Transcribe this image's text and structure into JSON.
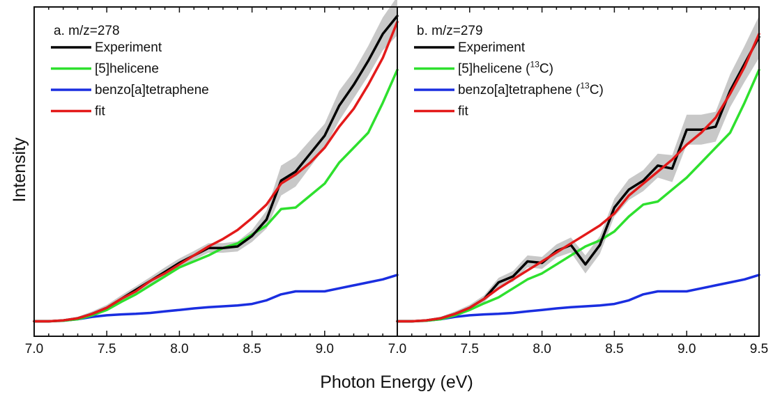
{
  "chart_data": [
    {
      "panel": "a",
      "type": "line",
      "title": "a. m/z=278",
      "xlabel": "Photon Energy (eV)",
      "ylabel": "Intensity",
      "xlim": [
        7.0,
        9.5
      ],
      "ylim": [
        -0.05,
        1.05
      ],
      "x_tick_labels": [
        "7.0",
        "7.5",
        "8.0",
        "8.5",
        "9.0"
      ],
      "grid": false,
      "legend_position": "top-left",
      "series": [
        {
          "name": "Experiment",
          "color": "#000000",
          "x": [
            7.0,
            7.1,
            7.2,
            7.3,
            7.4,
            7.5,
            7.6,
            7.7,
            7.8,
            7.9,
            8.0,
            8.1,
            8.2,
            8.3,
            8.4,
            8.5,
            8.6,
            8.7,
            8.8,
            8.9,
            9.0,
            9.1,
            9.2,
            9.3,
            9.4,
            9.5
          ],
          "y": [
            0.0,
            0.0,
            0.003,
            0.01,
            0.025,
            0.045,
            0.075,
            0.105,
            0.135,
            0.165,
            0.195,
            0.22,
            0.245,
            0.245,
            0.25,
            0.285,
            0.34,
            0.47,
            0.5,
            0.56,
            0.62,
            0.72,
            0.79,
            0.87,
            0.96,
            1.02
          ],
          "uncertainty_band": [
            0.002,
            0.002,
            0.004,
            0.005,
            0.008,
            0.01,
            0.012,
            0.012,
            0.013,
            0.015,
            0.015,
            0.015,
            0.016,
            0.016,
            0.017,
            0.02,
            0.03,
            0.05,
            0.05,
            0.045,
            0.04,
            0.05,
            0.045,
            0.05,
            0.055,
            0.065
          ]
        },
        {
          "name": "[5]helicene",
          "color": "#2ee02e",
          "x": [
            7.0,
            7.1,
            7.2,
            7.3,
            7.4,
            7.5,
            7.6,
            7.7,
            7.8,
            7.9,
            8.0,
            8.1,
            8.2,
            8.3,
            8.4,
            8.5,
            8.6,
            8.7,
            8.8,
            8.9,
            9.0,
            9.1,
            9.2,
            9.3,
            9.4,
            9.5
          ],
          "y": [
            0.0,
            0.0,
            0.002,
            0.007,
            0.02,
            0.038,
            0.065,
            0.09,
            0.12,
            0.15,
            0.18,
            0.2,
            0.22,
            0.245,
            0.26,
            0.29,
            0.32,
            0.375,
            0.38,
            0.42,
            0.46,
            0.53,
            0.58,
            0.63,
            0.73,
            0.84
          ]
        },
        {
          "name": "benzo[a]tetraphene",
          "color": "#1a2ee0",
          "x": [
            7.0,
            7.1,
            7.2,
            7.3,
            7.4,
            7.5,
            7.6,
            7.7,
            7.8,
            7.9,
            8.0,
            8.1,
            8.2,
            8.3,
            8.4,
            8.5,
            8.6,
            8.7,
            8.8,
            8.9,
            9.0,
            9.1,
            9.2,
            9.3,
            9.4,
            9.5
          ],
          "y": [
            0.0,
            0.0,
            0.002,
            0.007,
            0.015,
            0.02,
            0.023,
            0.025,
            0.028,
            0.033,
            0.038,
            0.043,
            0.047,
            0.05,
            0.053,
            0.058,
            0.07,
            0.09,
            0.1,
            0.1,
            0.1,
            0.11,
            0.12,
            0.13,
            0.14,
            0.155
          ]
        },
        {
          "name": "fit",
          "color": "#e31a1a",
          "x": [
            7.0,
            7.1,
            7.2,
            7.3,
            7.4,
            7.5,
            7.6,
            7.7,
            7.8,
            7.9,
            8.0,
            8.1,
            8.2,
            8.3,
            8.4,
            8.5,
            8.6,
            8.7,
            8.8,
            8.9,
            9.0,
            9.1,
            9.2,
            9.3,
            9.4,
            9.5
          ],
          "y": [
            0.0,
            0.0,
            0.003,
            0.01,
            0.025,
            0.045,
            0.075,
            0.1,
            0.135,
            0.16,
            0.19,
            0.22,
            0.25,
            0.275,
            0.305,
            0.345,
            0.39,
            0.46,
            0.49,
            0.53,
            0.58,
            0.65,
            0.71,
            0.79,
            0.88,
            1.0
          ]
        }
      ]
    },
    {
      "panel": "b",
      "type": "line",
      "title": "b. m/z=279",
      "xlabel": "Photon Energy (eV)",
      "ylabel": "Intensity",
      "xlim": [
        7.0,
        9.5
      ],
      "ylim": [
        -0.05,
        1.05
      ],
      "x_tick_labels": [
        "7.0",
        "7.5",
        "8.0",
        "8.5",
        "9.0",
        "9.5"
      ],
      "grid": false,
      "legend_position": "top-left",
      "series": [
        {
          "name": "Experiment",
          "color": "#000000",
          "x": [
            7.0,
            7.1,
            7.2,
            7.3,
            7.4,
            7.5,
            7.6,
            7.7,
            7.8,
            7.9,
            8.0,
            8.1,
            8.2,
            8.3,
            8.4,
            8.5,
            8.6,
            8.7,
            8.8,
            8.9,
            9.0,
            9.1,
            9.2,
            9.3,
            9.4,
            9.5
          ],
          "y": [
            0.0,
            0.0,
            0.003,
            0.01,
            0.025,
            0.045,
            0.075,
            0.13,
            0.15,
            0.2,
            0.195,
            0.235,
            0.255,
            0.19,
            0.255,
            0.38,
            0.44,
            0.47,
            0.52,
            0.51,
            0.64,
            0.64,
            0.65,
            0.77,
            0.86,
            0.95
          ],
          "uncertainty_band": [
            0.002,
            0.002,
            0.004,
            0.005,
            0.008,
            0.01,
            0.012,
            0.015,
            0.018,
            0.02,
            0.02,
            0.022,
            0.025,
            0.03,
            0.03,
            0.03,
            0.035,
            0.035,
            0.04,
            0.045,
            0.05,
            0.05,
            0.05,
            0.055,
            0.06,
            0.07
          ]
        },
        {
          "name": "[5]helicene (13C)",
          "label_main": "[5]helicene (",
          "label_sup": "13",
          "label_end": "C)",
          "color": "#2ee02e",
          "x": [
            7.0,
            7.1,
            7.2,
            7.3,
            7.4,
            7.5,
            7.6,
            7.7,
            7.8,
            7.9,
            8.0,
            8.1,
            8.2,
            8.3,
            8.4,
            8.5,
            8.6,
            8.7,
            8.8,
            8.9,
            9.0,
            9.1,
            9.2,
            9.3,
            9.4,
            9.5
          ],
          "y": [
            0.0,
            0.0,
            0.002,
            0.007,
            0.02,
            0.038,
            0.06,
            0.08,
            0.11,
            0.14,
            0.16,
            0.19,
            0.22,
            0.25,
            0.27,
            0.3,
            0.35,
            0.39,
            0.4,
            0.44,
            0.48,
            0.53,
            0.58,
            0.63,
            0.73,
            0.84
          ]
        },
        {
          "name": "benzo[a]tetraphene (13C)",
          "label_main": "benzo[a]tetraphene (",
          "label_sup": "13",
          "label_end": "C)",
          "color": "#1a2ee0",
          "x": [
            7.0,
            7.1,
            7.2,
            7.3,
            7.4,
            7.5,
            7.6,
            7.7,
            7.8,
            7.9,
            8.0,
            8.1,
            8.2,
            8.3,
            8.4,
            8.5,
            8.6,
            8.7,
            8.8,
            8.9,
            9.0,
            9.1,
            9.2,
            9.3,
            9.4,
            9.5
          ],
          "y": [
            0.0,
            0.0,
            0.002,
            0.007,
            0.015,
            0.02,
            0.023,
            0.025,
            0.028,
            0.033,
            0.038,
            0.043,
            0.047,
            0.05,
            0.053,
            0.058,
            0.07,
            0.09,
            0.1,
            0.1,
            0.1,
            0.11,
            0.12,
            0.13,
            0.14,
            0.155
          ]
        },
        {
          "name": "fit",
          "color": "#e31a1a",
          "x": [
            7.0,
            7.1,
            7.2,
            7.3,
            7.4,
            7.5,
            7.6,
            7.7,
            7.8,
            7.9,
            8.0,
            8.1,
            8.2,
            8.3,
            8.4,
            8.5,
            8.6,
            8.7,
            8.8,
            8.9,
            9.0,
            9.1,
            9.2,
            9.3,
            9.4,
            9.5
          ],
          "y": [
            0.0,
            0.0,
            0.003,
            0.01,
            0.025,
            0.045,
            0.075,
            0.11,
            0.14,
            0.17,
            0.2,
            0.23,
            0.26,
            0.29,
            0.32,
            0.36,
            0.42,
            0.46,
            0.5,
            0.54,
            0.59,
            0.63,
            0.68,
            0.76,
            0.85,
            0.96
          ]
        }
      ]
    }
  ]
}
